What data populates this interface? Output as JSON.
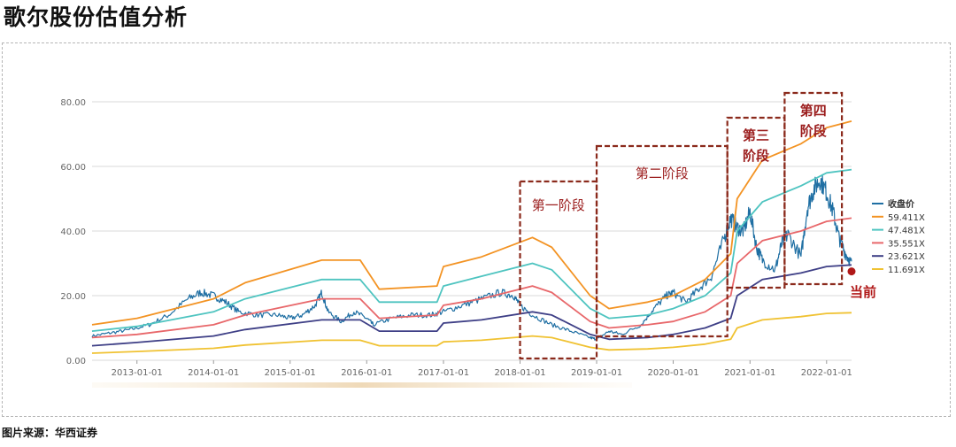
{
  "page": {
    "title": "歌尔股份估值分析",
    "source": "图片来源：华西证券"
  },
  "chart_data": {
    "type": "line",
    "xlabel": "",
    "ylabel": "",
    "ylim": [
      0,
      80
    ],
    "yticks": [
      "0.00",
      "20.00",
      "40.00",
      "60.00",
      "80.00"
    ],
    "xticks": [
      "2013-01-01",
      "2014-01-01",
      "2015-01-01",
      "2016-01-01",
      "2017-01-01",
      "2018-01-01",
      "2019-01-01",
      "2020-01-01",
      "2021-01-01",
      "2022-01-01"
    ],
    "xrange": [
      "2012-06-01",
      "2022-04-30"
    ],
    "grid": "horizontal",
    "legend_position": "right",
    "series": [
      {
        "name": "收盘价",
        "color": "#1f6fa3",
        "type": "price",
        "points": [
          [
            "2012-06-01",
            7.5
          ],
          [
            "2012-09-01",
            8.5
          ],
          [
            "2012-12-01",
            9.5
          ],
          [
            "2013-03-01",
            11
          ],
          [
            "2013-06-01",
            14
          ],
          [
            "2013-09-01",
            19
          ],
          [
            "2013-11-01",
            21
          ],
          [
            "2014-01-01",
            20
          ],
          [
            "2014-03-01",
            18
          ],
          [
            "2014-05-01",
            15
          ],
          [
            "2014-08-01",
            14
          ],
          [
            "2014-11-01",
            14
          ],
          [
            "2015-01-01",
            13
          ],
          [
            "2015-03-01",
            14
          ],
          [
            "2015-05-01",
            17
          ],
          [
            "2015-06-01",
            21
          ],
          [
            "2015-07-01",
            15
          ],
          [
            "2015-09-01",
            12
          ],
          [
            "2015-11-01",
            15
          ],
          [
            "2016-01-01",
            13
          ],
          [
            "2016-02-01",
            11
          ],
          [
            "2016-05-01",
            13
          ],
          [
            "2016-08-01",
            14
          ],
          [
            "2016-11-01",
            14
          ],
          [
            "2017-01-01",
            15
          ],
          [
            "2017-04-01",
            17
          ],
          [
            "2017-07-01",
            19
          ],
          [
            "2017-10-01",
            21
          ],
          [
            "2017-12-01",
            20
          ],
          [
            "2018-01-01",
            17
          ],
          [
            "2018-03-01",
            14
          ],
          [
            "2018-06-01",
            11
          ],
          [
            "2018-09-01",
            9
          ],
          [
            "2018-12-01",
            7
          ],
          [
            "2019-01-01",
            6.5
          ],
          [
            "2019-03-01",
            9
          ],
          [
            "2019-05-01",
            8
          ],
          [
            "2019-08-01",
            11
          ],
          [
            "2019-10-01",
            16
          ],
          [
            "2019-12-01",
            20
          ],
          [
            "2020-01-01",
            21
          ],
          [
            "2020-03-01",
            18
          ],
          [
            "2020-05-01",
            22
          ],
          [
            "2020-07-01",
            26
          ],
          [
            "2020-09-01",
            38
          ],
          [
            "2020-10-01",
            44
          ],
          [
            "2020-11-01",
            41
          ],
          [
            "2020-12-01",
            40
          ],
          [
            "2021-01-01",
            46
          ],
          [
            "2021-02-01",
            35
          ],
          [
            "2021-03-01",
            31
          ],
          [
            "2021-05-01",
            28
          ],
          [
            "2021-06-01",
            36
          ],
          [
            "2021-07-01",
            39
          ],
          [
            "2021-09-01",
            32
          ],
          [
            "2021-10-01",
            47
          ],
          [
            "2021-11-01",
            53
          ],
          [
            "2021-12-01",
            56
          ],
          [
            "2022-01-01",
            52
          ],
          [
            "2022-02-01",
            46
          ],
          [
            "2022-03-01",
            38
          ],
          [
            "2022-04-01",
            33
          ],
          [
            "2022-04-30",
            30
          ]
        ]
      },
      {
        "name": "59.411X",
        "color": "#f39323",
        "type": "band",
        "points": [
          [
            "2012-06-01",
            11
          ],
          [
            "2013-01-01",
            13
          ],
          [
            "2014-01-01",
            19
          ],
          [
            "2014-06-01",
            24
          ],
          [
            "2015-06-01",
            31
          ],
          [
            "2015-12-01",
            31
          ],
          [
            "2016-03-01",
            22
          ],
          [
            "2016-12-01",
            23
          ],
          [
            "2017-01-01",
            29
          ],
          [
            "2017-07-01",
            32
          ],
          [
            "2018-03-01",
            38
          ],
          [
            "2018-06-01",
            35
          ],
          [
            "2018-12-01",
            20
          ],
          [
            "2019-03-01",
            16
          ],
          [
            "2019-09-01",
            18
          ],
          [
            "2020-01-01",
            20
          ],
          [
            "2020-06-01",
            25
          ],
          [
            "2020-10-01",
            33
          ],
          [
            "2020-11-01",
            50
          ],
          [
            "2021-03-01",
            62
          ],
          [
            "2021-09-01",
            67
          ],
          [
            "2022-01-01",
            72
          ],
          [
            "2022-04-30",
            74
          ]
        ]
      },
      {
        "name": "47.481X",
        "color": "#4ec4c0",
        "type": "band",
        "points": [
          [
            "2012-06-01",
            9
          ],
          [
            "2013-01-01",
            10.5
          ],
          [
            "2014-01-01",
            15
          ],
          [
            "2014-06-01",
            19
          ],
          [
            "2015-06-01",
            25
          ],
          [
            "2015-12-01",
            25
          ],
          [
            "2016-03-01",
            18
          ],
          [
            "2016-12-01",
            18
          ],
          [
            "2017-01-01",
            23
          ],
          [
            "2017-07-01",
            26
          ],
          [
            "2018-03-01",
            30
          ],
          [
            "2018-06-01",
            28
          ],
          [
            "2018-12-01",
            16
          ],
          [
            "2019-03-01",
            13
          ],
          [
            "2019-09-01",
            14
          ],
          [
            "2020-01-01",
            16
          ],
          [
            "2020-06-01",
            20
          ],
          [
            "2020-10-01",
            27
          ],
          [
            "2020-11-01",
            40
          ],
          [
            "2021-03-01",
            49
          ],
          [
            "2021-09-01",
            54
          ],
          [
            "2022-01-01",
            58
          ],
          [
            "2022-04-30",
            59
          ]
        ]
      },
      {
        "name": "35.551X",
        "color": "#e8676a",
        "type": "band",
        "points": [
          [
            "2012-06-01",
            7
          ],
          [
            "2013-01-01",
            8
          ],
          [
            "2014-01-01",
            11
          ],
          [
            "2014-06-01",
            14
          ],
          [
            "2015-06-01",
            19
          ],
          [
            "2015-12-01",
            19
          ],
          [
            "2016-03-01",
            13
          ],
          [
            "2016-12-01",
            14
          ],
          [
            "2017-01-01",
            17
          ],
          [
            "2017-07-01",
            19
          ],
          [
            "2018-03-01",
            23
          ],
          [
            "2018-06-01",
            21
          ],
          [
            "2018-12-01",
            12
          ],
          [
            "2019-03-01",
            10
          ],
          [
            "2019-09-01",
            11
          ],
          [
            "2020-01-01",
            12
          ],
          [
            "2020-06-01",
            15
          ],
          [
            "2020-10-01",
            20
          ],
          [
            "2020-11-01",
            30
          ],
          [
            "2021-03-01",
            37
          ],
          [
            "2021-09-01",
            40
          ],
          [
            "2022-01-01",
            43
          ],
          [
            "2022-04-30",
            44
          ]
        ]
      },
      {
        "name": "23.621X",
        "color": "#3e3f86",
        "type": "band",
        "points": [
          [
            "2012-06-01",
            4.5
          ],
          [
            "2013-01-01",
            5.5
          ],
          [
            "2014-01-01",
            7.5
          ],
          [
            "2014-06-01",
            9.5
          ],
          [
            "2015-06-01",
            12.5
          ],
          [
            "2015-12-01",
            12.5
          ],
          [
            "2016-03-01",
            9
          ],
          [
            "2016-12-01",
            9
          ],
          [
            "2017-01-01",
            11.5
          ],
          [
            "2017-07-01",
            12.5
          ],
          [
            "2018-03-01",
            15
          ],
          [
            "2018-06-01",
            14
          ],
          [
            "2018-12-01",
            8
          ],
          [
            "2019-03-01",
            6.5
          ],
          [
            "2019-09-01",
            7
          ],
          [
            "2020-01-01",
            8
          ],
          [
            "2020-06-01",
            10
          ],
          [
            "2020-10-01",
            13
          ],
          [
            "2020-11-01",
            20
          ],
          [
            "2021-03-01",
            25
          ],
          [
            "2021-09-01",
            27
          ],
          [
            "2022-01-01",
            29
          ],
          [
            "2022-04-30",
            29.5
          ]
        ]
      },
      {
        "name": "11.691X",
        "color": "#f0c232",
        "type": "band",
        "points": [
          [
            "2012-06-01",
            2.2
          ],
          [
            "2013-01-01",
            2.7
          ],
          [
            "2014-01-01",
            3.7
          ],
          [
            "2014-06-01",
            4.7
          ],
          [
            "2015-06-01",
            6.2
          ],
          [
            "2015-12-01",
            6.2
          ],
          [
            "2016-03-01",
            4.5
          ],
          [
            "2016-12-01",
            4.5
          ],
          [
            "2017-01-01",
            5.7
          ],
          [
            "2017-07-01",
            6.2
          ],
          [
            "2018-03-01",
            7.5
          ],
          [
            "2018-06-01",
            7
          ],
          [
            "2018-12-01",
            4
          ],
          [
            "2019-03-01",
            3.2
          ],
          [
            "2019-09-01",
            3.5
          ],
          [
            "2020-01-01",
            4
          ],
          [
            "2020-06-01",
            5
          ],
          [
            "2020-10-01",
            6.5
          ],
          [
            "2020-11-01",
            10
          ],
          [
            "2021-03-01",
            12.5
          ],
          [
            "2021-09-01",
            13.5
          ],
          [
            "2022-01-01",
            14.5
          ],
          [
            "2022-04-30",
            14.7
          ]
        ]
      }
    ],
    "current_marker": {
      "date": "2022-04-30",
      "value": 27.5,
      "color": "#b01818"
    },
    "annotations": [
      {
        "text": "第一阶段",
        "x_start": "2018-01-01",
        "x_end": "2019-01-01"
      },
      {
        "text": "第二阶段",
        "x_start": "2019-01-01",
        "x_end": "2020-09-15"
      },
      {
        "text": "第三阶段",
        "x_start": "2020-09-15",
        "x_end": "2021-06-15"
      },
      {
        "text": "第四阶段",
        "x_start": "2021-06-15",
        "x_end": "2022-03-15"
      },
      {
        "text": "当前",
        "x_start": "2022-04-30",
        "x_end": "2022-04-30"
      }
    ]
  }
}
